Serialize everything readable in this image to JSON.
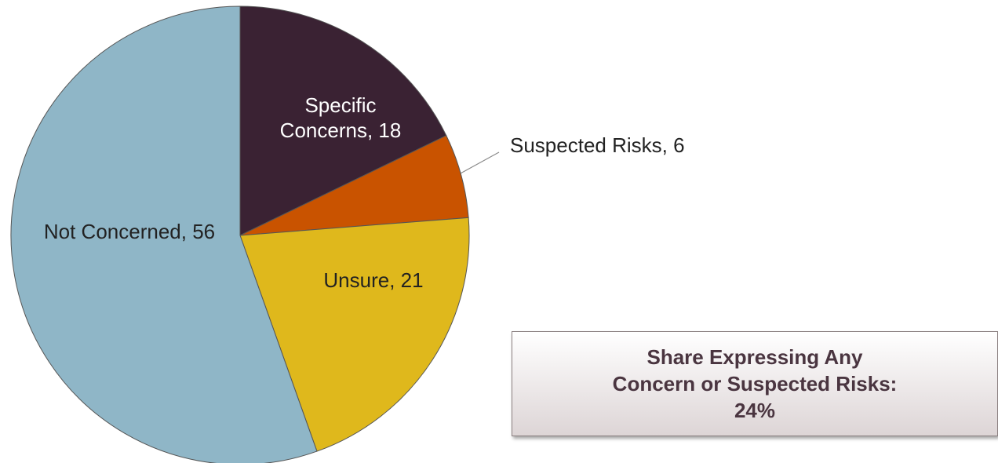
{
  "chart_data": {
    "type": "pie",
    "values": [
      18,
      6,
      21,
      56
    ],
    "value_labels": [
      "Specific Concerns, 18",
      "Suspected Risks, 6",
      "Unsure, 21",
      "Not Concerned, 56"
    ],
    "colors": [
      "#3a2233",
      "#c95300",
      "#dfb81c",
      "#8fb6c7"
    ],
    "annotation": "Share Expressing Any Concern or Suspected Risks: 24%"
  }
}
